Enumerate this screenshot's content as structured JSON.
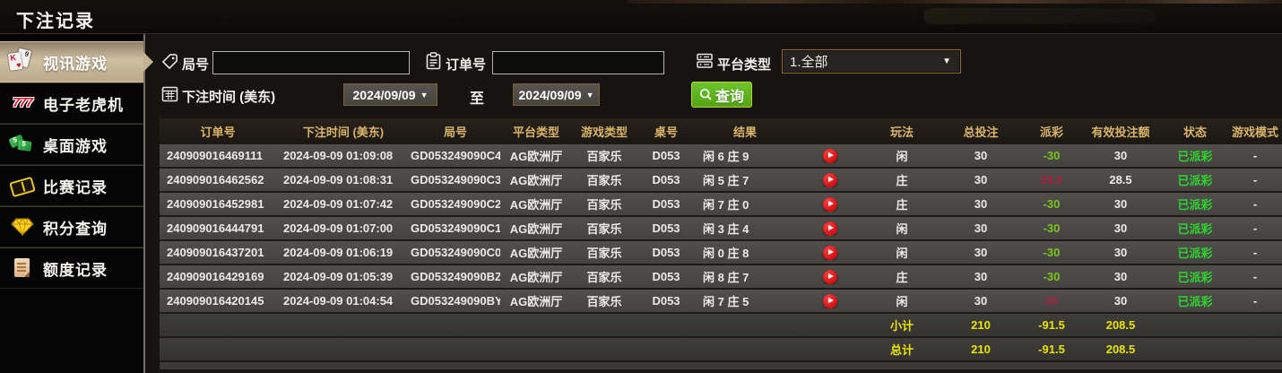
{
  "title": "下注记录",
  "sidebar": {
    "items": [
      {
        "label": "视讯游戏",
        "icon": "playing-cards-icon",
        "active": true
      },
      {
        "label": "电子老虎机",
        "icon": "slot-777-icon",
        "active": false
      },
      {
        "label": "桌面游戏",
        "icon": "dominoes-icon",
        "active": false
      },
      {
        "label": "比赛记录",
        "icon": "ticket-icon",
        "active": false
      },
      {
        "label": "积分查询",
        "icon": "gem-icon",
        "active": false
      },
      {
        "label": "额度记录",
        "icon": "document-icon",
        "active": false
      }
    ]
  },
  "filters": {
    "round_label": "局号",
    "round_value": "",
    "order_label": "订单号",
    "order_value": "",
    "platform_label": "平台类型",
    "platform_value": "1.全部",
    "time_label": "下注时间 (美东)",
    "date_from": "2024/09/09",
    "to_label": "至",
    "date_to": "2024/09/09",
    "query_label": "查询"
  },
  "table": {
    "headers": [
      "订单号",
      "下注时间 (美东)",
      "局号",
      "平台类型",
      "游戏类型",
      "桌号",
      "结果",
      "",
      "玩法",
      "总投注",
      "派彩",
      "有效投注额",
      "状态",
      "游戏模式"
    ],
    "rows": [
      {
        "order": "240909016469111",
        "time": "2024-09-09 01:09:08",
        "round": "GD053249090C4",
        "platform": "AG欧洲厅",
        "game": "百家乐",
        "table_no": "D053",
        "result": "闲 6 庄 9",
        "play": "闲",
        "total": "30",
        "payout": "-30",
        "payout_class": "neg",
        "valid": "30",
        "status": "已派彩",
        "mode": "-"
      },
      {
        "order": "240909016462562",
        "time": "2024-09-09 01:08:31",
        "round": "GD053249090C3",
        "platform": "AG欧洲厅",
        "game": "百家乐",
        "table_no": "D053",
        "result": "闲 5 庄 7",
        "play": "庄",
        "total": "30",
        "payout": "28.5",
        "payout_class": "pos",
        "valid": "28.5",
        "status": "已派彩",
        "mode": "-"
      },
      {
        "order": "240909016452981",
        "time": "2024-09-09 01:07:42",
        "round": "GD053249090C2",
        "platform": "AG欧洲厅",
        "game": "百家乐",
        "table_no": "D053",
        "result": "闲 7 庄 0",
        "play": "庄",
        "total": "30",
        "payout": "-30",
        "payout_class": "neg",
        "valid": "30",
        "status": "已派彩",
        "mode": "-"
      },
      {
        "order": "240909016444791",
        "time": "2024-09-09 01:07:00",
        "round": "GD053249090C1",
        "platform": "AG欧洲厅",
        "game": "百家乐",
        "table_no": "D053",
        "result": "闲 3 庄 4",
        "play": "闲",
        "total": "30",
        "payout": "-30",
        "payout_class": "neg",
        "valid": "30",
        "status": "已派彩",
        "mode": "-"
      },
      {
        "order": "240909016437201",
        "time": "2024-09-09 01:06:19",
        "round": "GD053249090C0",
        "platform": "AG欧洲厅",
        "game": "百家乐",
        "table_no": "D053",
        "result": "闲 0 庄 8",
        "play": "闲",
        "total": "30",
        "payout": "-30",
        "payout_class": "neg",
        "valid": "30",
        "status": "已派彩",
        "mode": "-"
      },
      {
        "order": "240909016429169",
        "time": "2024-09-09 01:05:39",
        "round": "GD053249090BZ",
        "platform": "AG欧洲厅",
        "game": "百家乐",
        "table_no": "D053",
        "result": "闲 8 庄 7",
        "play": "庄",
        "total": "30",
        "payout": "-30",
        "payout_class": "neg",
        "valid": "30",
        "status": "已派彩",
        "mode": "-"
      },
      {
        "order": "240909016420145",
        "time": "2024-09-09 01:04:54",
        "round": "GD053249090BY",
        "platform": "AG欧洲厅",
        "game": "百家乐",
        "table_no": "D053",
        "result": "闲 7 庄 5",
        "play": "闲",
        "total": "30",
        "payout": "30",
        "payout_class": "pos",
        "valid": "30",
        "status": "已派彩",
        "mode": "-"
      }
    ],
    "subtotal": {
      "label": "小计",
      "total": "210",
      "payout": "-91.5",
      "valid": "208.5"
    },
    "total": {
      "label": "总计",
      "total": "210",
      "payout": "-91.5",
      "valid": "208.5"
    }
  },
  "colors": {
    "header_gold": "#d9b469",
    "win_red": "#a8233d",
    "loss_green": "#7cc41e",
    "status_green": "#2fd32f",
    "summary_yellow": "#e8e400",
    "query_green": "#5cb51f",
    "active_tab_tan": "#c3b294",
    "play_button_red": "#d01010"
  }
}
